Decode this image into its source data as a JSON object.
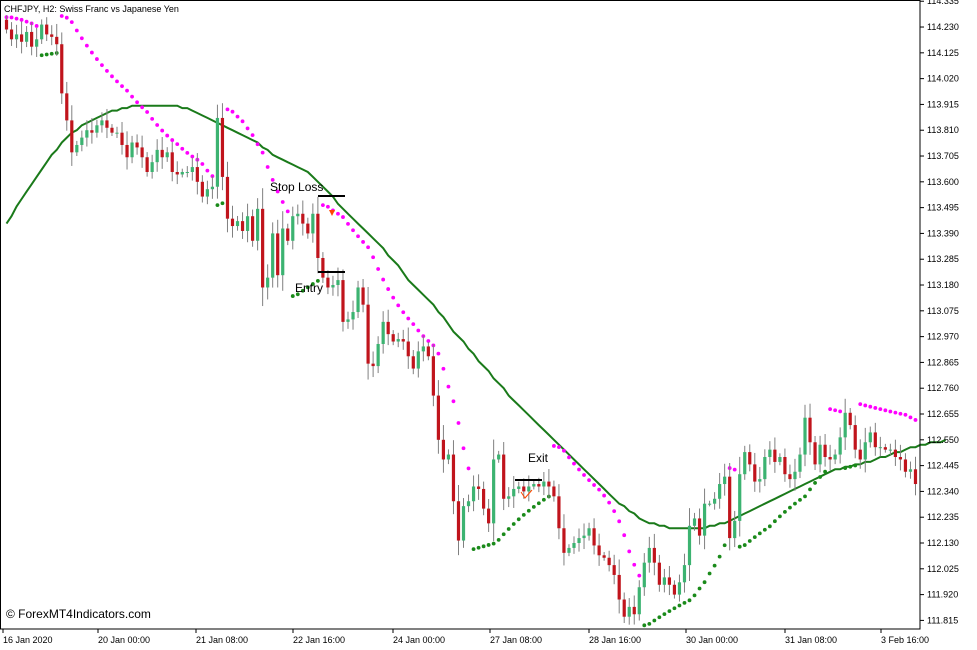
{
  "chart_data": {
    "type": "candlestick",
    "header": "CHFJPY, H2:  Swiss Franc vs Japanese Yen",
    "watermark": "© ForexMT4Indicators.com",
    "y_ticks": [
      "114.335",
      "114.230",
      "114.125",
      "114.020",
      "113.915",
      "113.810",
      "113.705",
      "113.600",
      "113.495",
      "113.390",
      "113.285",
      "113.180",
      "113.075",
      "112.970",
      "112.865",
      "112.760",
      "112.655",
      "112.550",
      "112.445",
      "112.340",
      "112.235",
      "112.130",
      "112.025",
      "111.920",
      "111.815"
    ],
    "ylim": [
      111.78,
      114.34
    ],
    "x_ticks": [
      "16 Jan 2020",
      "20 Jan 00:00",
      "21 Jan 08:00",
      "22 Jan 16:00",
      "24 Jan 00:00",
      "27 Jan 08:00",
      "28 Jan 16:00",
      "30 Jan 00:00",
      "31 Jan 08:00",
      "3 Feb 16:00"
    ],
    "colors": {
      "bull": "#3cb371",
      "bear": "#c0141c",
      "wick": "#808080",
      "ma": "#1a7a1a",
      "sar_down": "#ff00ff",
      "sar_up": "#1a8a1a",
      "axis": "#000000",
      "grid": "#c8c8c8"
    },
    "annotations": {
      "stop_loss": "Stop Loss",
      "entry": "Entry",
      "exit": "Exit"
    },
    "close": [
      114.22,
      114.18,
      114.2,
      114.17,
      114.21,
      114.15,
      114.18,
      114.24,
      114.2,
      114.19,
      114.16,
      113.96,
      113.85,
      113.72,
      113.75,
      113.78,
      113.81,
      113.8,
      113.83,
      113.85,
      113.82,
      113.8,
      113.8,
      113.75,
      113.7,
      113.76,
      113.74,
      113.7,
      113.64,
      113.68,
      113.73,
      113.7,
      113.72,
      113.64,
      113.63,
      113.64,
      113.64,
      113.66,
      113.6,
      113.54,
      113.57,
      113.58,
      113.86,
      113.62,
      113.45,
      113.42,
      113.44,
      113.4,
      113.46,
      113.36,
      113.49,
      113.17,
      113.21,
      113.39,
      113.22,
      113.41,
      113.36,
      113.46,
      113.47,
      113.43,
      113.39,
      113.47,
      113.29,
      113.21,
      113.17,
      113.18,
      113.2,
      113.03,
      113.04,
      113.07,
      113.17,
      113.1,
      112.86,
      112.85,
      112.94,
      113.03,
      112.98,
      112.95,
      112.96,
      112.95,
      112.89,
      112.84,
      112.91,
      112.93,
      112.89,
      112.73,
      112.55,
      112.47,
      112.49,
      112.3,
      112.14,
      112.28,
      112.3,
      112.36,
      112.35,
      112.27,
      112.21,
      112.47,
      112.49,
      112.31,
      112.32,
      112.35,
      112.36,
      112.34,
      112.36,
      112.37,
      112.36,
      112.38,
      112.36,
      112.32,
      112.19,
      112.09,
      112.11,
      112.13,
      112.15,
      112.16,
      112.19,
      112.12,
      112.08,
      112.07,
      112.04,
      112.0,
      111.9,
      111.83,
      111.87,
      111.84,
      111.95,
      112.05,
      112.11,
      112.05,
      111.96,
      111.99,
      111.96,
      111.92,
      111.97,
      112.04,
      112.2,
      112.23,
      112.16,
      112.29,
      112.29,
      112.31,
      112.37,
      112.4,
      112.15,
      112.22,
      112.41,
      112.5,
      112.45,
      112.38,
      112.39,
      112.48,
      112.51,
      112.46,
      112.48,
      112.41,
      112.39,
      112.42,
      112.49,
      112.64,
      112.54,
      112.45,
      112.53,
      112.48,
      112.47,
      112.49,
      112.56,
      112.66,
      112.61,
      112.51,
      112.47,
      112.54,
      112.58,
      112.52,
      112.52,
      112.51,
      112.51,
      112.48,
      112.47,
      112.42,
      112.43,
      112.37
    ],
    "ma": [
      113.43,
      113.46,
      113.5,
      113.53,
      113.56,
      113.59,
      113.62,
      113.65,
      113.68,
      113.71,
      113.73,
      113.76,
      113.78,
      113.8,
      113.81,
      113.83,
      113.84,
      113.85,
      113.86,
      113.87,
      113.88,
      113.89,
      113.89,
      113.9,
      113.9,
      113.91,
      113.91,
      113.91,
      113.91,
      113.91,
      113.91,
      113.91,
      113.91,
      113.91,
      113.91,
      113.9,
      113.9,
      113.89,
      113.88,
      113.87,
      113.86,
      113.85,
      113.84,
      113.83,
      113.82,
      113.81,
      113.8,
      113.79,
      113.78,
      113.77,
      113.76,
      113.74,
      113.73,
      113.71,
      113.7,
      113.69,
      113.68,
      113.67,
      113.66,
      113.65,
      113.64,
      113.62,
      113.6,
      113.58,
      113.56,
      113.54,
      113.51,
      113.49,
      113.47,
      113.45,
      113.43,
      113.41,
      113.39,
      113.37,
      113.35,
      113.33,
      113.3,
      113.28,
      113.26,
      113.23,
      113.2,
      113.18,
      113.16,
      113.14,
      113.12,
      113.1,
      113.07,
      113.05,
      113.02,
      112.99,
      112.97,
      112.95,
      112.92,
      112.9,
      112.87,
      112.85,
      112.83,
      112.8,
      112.78,
      112.76,
      112.73,
      112.71,
      112.69,
      112.67,
      112.65,
      112.63,
      112.61,
      112.59,
      112.57,
      112.55,
      112.53,
      112.51,
      112.49,
      112.47,
      112.45,
      112.43,
      112.41,
      112.39,
      112.37,
      112.35,
      112.33,
      112.31,
      112.29,
      112.28,
      112.26,
      112.25,
      112.23,
      112.22,
      112.21,
      112.21,
      112.2,
      112.2,
      112.19,
      112.19,
      112.19,
      112.19,
      112.19,
      112.19,
      112.19,
      112.19,
      112.2,
      112.2,
      112.21,
      112.21,
      112.22,
      112.23,
      112.24,
      112.25,
      112.26,
      112.27,
      112.28,
      112.29,
      112.3,
      112.31,
      112.32,
      112.33,
      112.34,
      112.35,
      112.36,
      112.37,
      112.38,
      112.39,
      112.4,
      112.41,
      112.42,
      112.43,
      112.43,
      112.44,
      112.44,
      112.45,
      112.45,
      112.46,
      112.46,
      112.47,
      112.48,
      112.48,
      112.49,
      112.5,
      112.5,
      112.51,
      112.52,
      112.52,
      112.53,
      112.53,
      112.54,
      112.54,
      112.54,
      112.55
    ]
  }
}
